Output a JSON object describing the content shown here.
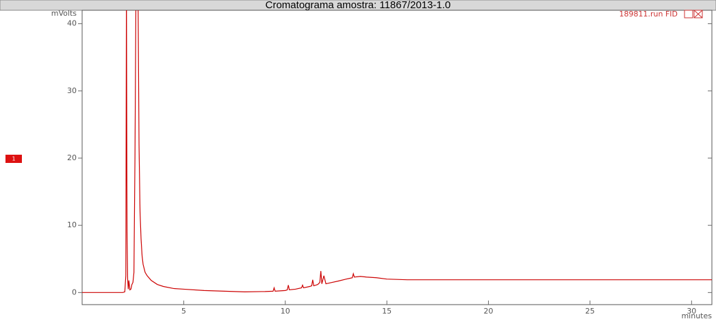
{
  "chart_data": {
    "type": "line",
    "title": "Cromatograma amostra: 11867/2013-1.0",
    "y_label": "mVolts",
    "x_label": "minutes",
    "marker_label": "1",
    "xlim": [
      0,
      31
    ],
    "ylim": [
      -1.8,
      42
    ],
    "xticks": [
      5,
      10,
      15,
      20,
      25,
      30
    ],
    "yticks": [
      0,
      10,
      20,
      30,
      40
    ],
    "x": [
      0,
      1,
      2,
      2.1,
      2.15,
      2.18,
      2.21,
      2.24,
      2.27,
      2.3,
      2.35,
      2.4,
      2.45,
      2.5,
      2.55,
      2.6,
      2.65,
      2.7,
      2.75,
      2.8,
      2.85,
      2.9,
      2.95,
      3.0,
      3.1,
      3.2,
      3.4,
      3.7,
      4.0,
      4.5,
      5,
      6,
      7,
      8,
      9,
      9.4,
      9.45,
      9.5,
      10,
      10.1,
      10.15,
      10.2,
      10.5,
      10.8,
      10.85,
      10.9,
      11.2,
      11.3,
      11.35,
      11.4,
      11.6,
      11.7,
      11.75,
      11.8,
      11.9,
      12,
      12.3,
      12.6,
      13,
      13.3,
      13.35,
      13.4,
      13.7,
      14,
      14.5,
      15,
      16,
      18,
      20,
      22,
      24,
      26,
      28,
      30,
      31
    ],
    "series": [
      {
        "name": "189811.run FID",
        "color": "#cc0000",
        "values": [
          0,
          0,
          0,
          0.1,
          2.5,
          45,
          9,
          2,
          0.5,
          1.8,
          0.4,
          0.5,
          1.2,
          1.5,
          3,
          20,
          45,
          45,
          45,
          22,
          12,
          8,
          5.5,
          4.2,
          3,
          2.5,
          1.8,
          1.2,
          0.9,
          0.6,
          0.5,
          0.3,
          0.2,
          0.1,
          0.15,
          0.2,
          0.7,
          0.2,
          0.3,
          0.4,
          1.1,
          0.4,
          0.5,
          0.7,
          1.1,
          0.7,
          0.9,
          1.0,
          1.9,
          1.0,
          1.2,
          1.5,
          3.2,
          1.3,
          2.5,
          1.3,
          1.5,
          1.7,
          2.0,
          2.2,
          2.8,
          2.3,
          2.4,
          2.3,
          2.2,
          2.0,
          1.9,
          1.9,
          1.9,
          1.9,
          1.9,
          1.9,
          1.9,
          1.9,
          1.9
        ]
      }
    ]
  }
}
